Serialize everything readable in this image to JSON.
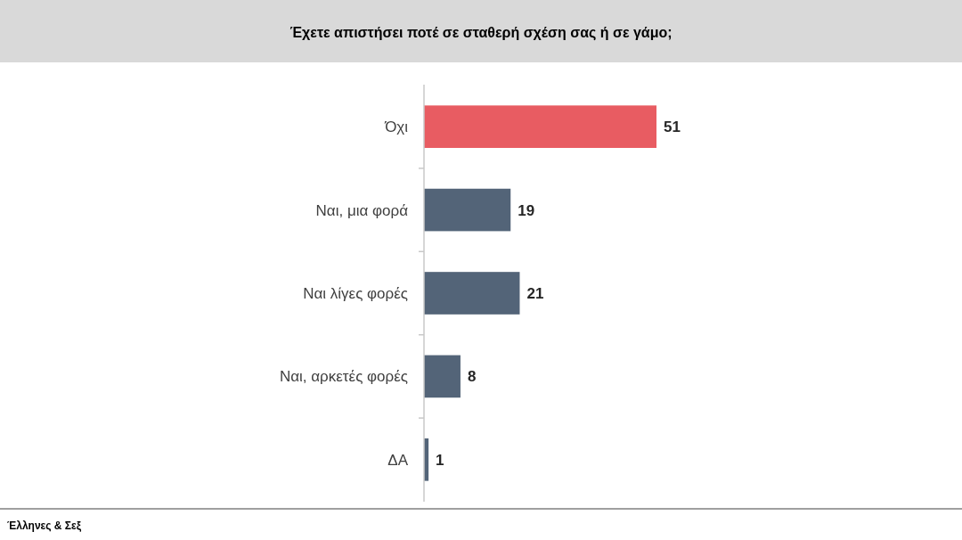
{
  "chart_data": {
    "type": "bar",
    "orientation": "horizontal",
    "title": "Έχετε απιστήσει ποτέ σε σταθερή σχέση σας ή σε γάμο;",
    "categories": [
      "Όχι",
      "Ναι, μια φορά",
      "Ναι λίγες φορές",
      "Ναι, αρκετές φορές",
      "ΔΑ"
    ],
    "values": [
      51,
      19,
      21,
      8,
      1
    ],
    "colors": [
      "#e85c62",
      "#536478",
      "#536478",
      "#536478",
      "#536478"
    ],
    "data_labels": true,
    "annotations": [
      "Έλληνες & Σεξ"
    ]
  }
}
